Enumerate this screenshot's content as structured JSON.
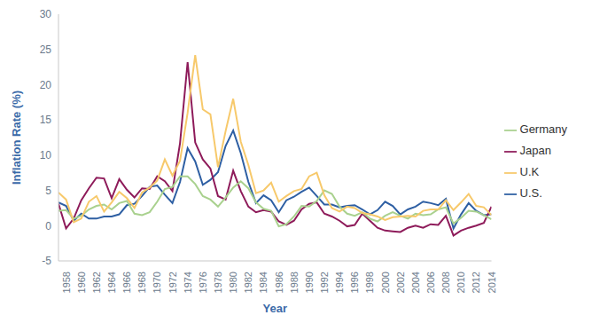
{
  "chart_data": {
    "type": "line",
    "x_label": "Year",
    "y_label": "Inflation Rate (%)",
    "x": [
      1957,
      1958,
      1959,
      1960,
      1961,
      1962,
      1963,
      1964,
      1965,
      1966,
      1967,
      1968,
      1969,
      1970,
      1971,
      1972,
      1973,
      1974,
      1975,
      1976,
      1977,
      1978,
      1979,
      1980,
      1981,
      1982,
      1983,
      1984,
      1985,
      1986,
      1987,
      1988,
      1989,
      1990,
      1991,
      1992,
      1993,
      1994,
      1995,
      1996,
      1997,
      1998,
      1999,
      2000,
      2001,
      2002,
      2003,
      2004,
      2005,
      2006,
      2007,
      2008,
      2009,
      2010,
      2011,
      2012,
      2013,
      2014
    ],
    "xlim": [
      1957,
      2014
    ],
    "xticks": [
      1958,
      1960,
      1962,
      1964,
      1966,
      1968,
      1970,
      1972,
      1974,
      1976,
      1978,
      1980,
      1982,
      1984,
      1986,
      1988,
      1990,
      1992,
      1994,
      1996,
      1998,
      2000,
      2002,
      2004,
      2006,
      2008,
      2010,
      2012,
      2014
    ],
    "ylim": [
      -5,
      30
    ],
    "yticks": [
      -5,
      0,
      5,
      10,
      15,
      20,
      25,
      30
    ],
    "grid": false,
    "legend": "right",
    "series": [
      {
        "name": "U.S.",
        "color": "#2e5fa3",
        "values": [
          3.3,
          2.8,
          0.7,
          1.7,
          1.0,
          1.0,
          1.3,
          1.3,
          1.6,
          2.9,
          3.1,
          4.2,
          5.5,
          5.7,
          4.4,
          3.2,
          6.2,
          11.0,
          9.1,
          5.8,
          6.5,
          7.6,
          11.3,
          13.5,
          10.3,
          6.2,
          3.2,
          4.3,
          3.6,
          1.9,
          3.6,
          4.1,
          4.8,
          5.4,
          4.2,
          3.0,
          3.0,
          2.6,
          2.8,
          2.9,
          2.3,
          1.6,
          2.2,
          3.4,
          2.8,
          1.6,
          2.3,
          2.7,
          3.4,
          3.2,
          2.9,
          3.8,
          -0.4,
          1.6,
          3.2,
          2.1,
          1.5,
          1.6
        ]
      },
      {
        "name": "Japan",
        "color": "#8e1b5a",
        "values": [
          3.1,
          -0.4,
          1.0,
          3.6,
          5.3,
          6.8,
          6.7,
          3.9,
          6.6,
          5.1,
          4.0,
          5.3,
          5.2,
          7.0,
          6.3,
          4.9,
          11.7,
          23.2,
          11.8,
          9.4,
          8.1,
          4.2,
          3.7,
          7.8,
          4.9,
          2.7,
          1.9,
          2.2,
          2.0,
          0.6,
          0.1,
          0.7,
          2.3,
          3.1,
          3.3,
          1.7,
          1.3,
          0.7,
          -0.1,
          0.1,
          1.7,
          0.7,
          -0.3,
          -0.7,
          -0.8,
          -0.9,
          -0.3,
          0.0,
          -0.3,
          0.2,
          0.1,
          1.4,
          -1.4,
          -0.7,
          -0.3,
          0.0,
          0.4,
          2.7
        ]
      },
      {
        "name": "Germany",
        "color": "#a9d18e",
        "values": [
          2.1,
          2.2,
          1.0,
          1.4,
          2.3,
          2.8,
          3.0,
          2.3,
          3.2,
          3.5,
          1.7,
          1.5,
          1.9,
          3.4,
          5.2,
          5.5,
          7.0,
          7.0,
          5.9,
          4.2,
          3.7,
          2.7,
          4.0,
          5.4,
          6.3,
          5.3,
          3.3,
          2.4,
          2.1,
          -0.1,
          0.2,
          1.3,
          2.8,
          2.7,
          3.5,
          5.0,
          4.5,
          2.7,
          1.7,
          1.4,
          1.9,
          1.0,
          0.6,
          1.4,
          1.9,
          1.4,
          1.0,
          1.7,
          1.5,
          1.6,
          2.3,
          2.6,
          0.3,
          1.1,
          2.1,
          2.0,
          1.5,
          0.9
        ]
      },
      {
        "name": "U.K",
        "color": "#f7c96b",
        "values": [
          4.7,
          3.7,
          0.5,
          1.0,
          3.4,
          4.2,
          2.0,
          3.3,
          4.8,
          3.9,
          2.5,
          4.7,
          5.4,
          6.4,
          9.4,
          7.1,
          9.2,
          16.0,
          24.2,
          16.5,
          15.8,
          8.3,
          13.4,
          18.0,
          11.9,
          8.6,
          4.6,
          5.0,
          6.1,
          3.4,
          4.2,
          4.9,
          5.2,
          7.0,
          7.5,
          4.3,
          2.5,
          2.0,
          2.7,
          2.5,
          1.8,
          1.6,
          1.3,
          0.8,
          1.2,
          1.3,
          1.4,
          1.3,
          2.1,
          2.3,
          2.3,
          3.6,
          2.2,
          3.3,
          4.5,
          2.8,
          2.6,
          1.5
        ]
      }
    ]
  }
}
